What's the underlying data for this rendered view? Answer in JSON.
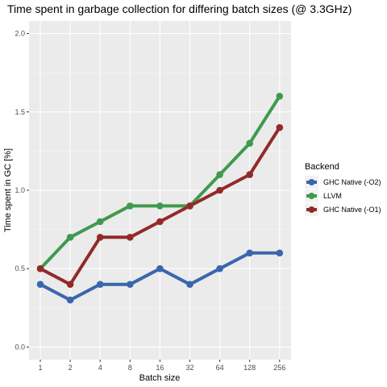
{
  "chart_data": {
    "type": "line",
    "title": "Time spent in garbage collection for differing batch sizes (@ 3.3GHz)",
    "xlabel": "Batch size",
    "ylabel": "Time spent in GC [%]",
    "categories": [
      "1",
      "2",
      "4",
      "8",
      "16",
      "32",
      "64",
      "128",
      "256"
    ],
    "yticks": [
      "0.0",
      "0.5",
      "1.0",
      "1.5",
      "2.0"
    ],
    "ylim": [
      -0.08,
      2.08
    ],
    "grid": true,
    "legend": {
      "title": "Backend",
      "position": "right"
    },
    "series": [
      {
        "name": "GHC Native (-O2)",
        "color": "#3a66ad",
        "values": [
          0.4,
          0.3,
          0.4,
          0.4,
          0.5,
          0.4,
          0.5,
          0.6,
          0.6
        ]
      },
      {
        "name": "LLVM",
        "color": "#3f9a4e",
        "values": [
          0.5,
          0.7,
          0.8,
          0.9,
          0.9,
          0.9,
          1.1,
          1.3,
          1.6
        ]
      },
      {
        "name": "GHC Native (-O1)",
        "color": "#922a2a",
        "values": [
          0.5,
          0.4,
          0.7,
          0.7,
          0.8,
          0.9,
          1.0,
          1.1,
          1.4
        ]
      }
    ]
  }
}
